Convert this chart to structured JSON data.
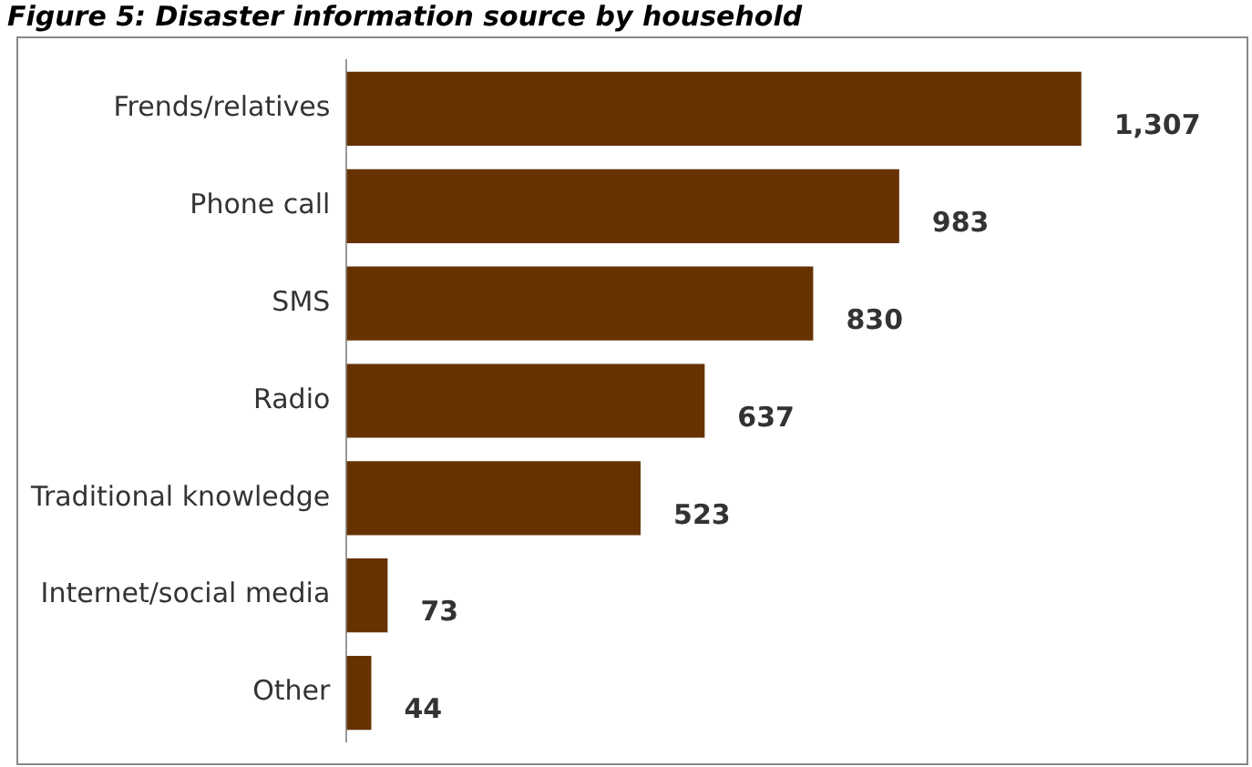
{
  "chart_data": {
    "type": "bar",
    "orientation": "horizontal",
    "title": "Figure 5: Disaster information source by household",
    "categories": [
      "Frends/relatives",
      "Phone call",
      "SMS",
      "Radio",
      "Traditional knowledge",
      "Internet/social media",
      "Other"
    ],
    "values": [
      1307,
      983,
      830,
      637,
      523,
      73,
      44
    ],
    "color": "#663300",
    "data_labels": true,
    "value_labels": [
      "1,307",
      "983",
      "830",
      "637",
      "523",
      "73",
      "44"
    ]
  }
}
